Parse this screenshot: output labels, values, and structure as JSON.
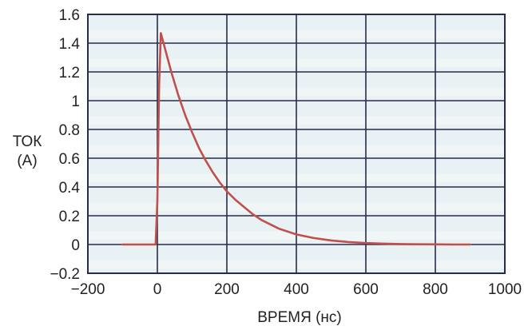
{
  "chart_data": {
    "type": "line",
    "title": "",
    "xlabel": "ВРЕМЯ (нс)",
    "ylabel_lines": [
      "ТОК",
      "(А)"
    ],
    "xlim": [
      -200,
      1000
    ],
    "ylim": [
      -0.2,
      1.6
    ],
    "x_ticks": [
      -200,
      0,
      200,
      400,
      600,
      800,
      1000
    ],
    "x_tick_labels": [
      "−200",
      "0",
      "200",
      "400",
      "600",
      "800",
      "1000"
    ],
    "y_ticks": [
      -0.2,
      0,
      0.2,
      0.4,
      0.6,
      0.8,
      1,
      1.2,
      1.4,
      1.6
    ],
    "y_tick_labels": [
      "−0.2",
      "0",
      "0.2",
      "0.4",
      "0.6",
      "0.8",
      "1",
      "1.2",
      "1.4",
      "1.6"
    ],
    "grid": true,
    "series": [
      {
        "color": "#c0504d",
        "x": [
          -100,
          -5,
          0,
          5,
          10,
          20,
          40,
          60,
          80,
          100,
          120,
          140,
          160,
          180,
          200,
          225,
          250,
          275,
          300,
          350,
          400,
          450,
          500,
          550,
          600,
          650,
          700,
          750,
          800,
          850,
          900
        ],
        "y": [
          0,
          0,
          0.3,
          1.1,
          1.47,
          1.38,
          1.2,
          1.04,
          0.9,
          0.78,
          0.67,
          0.58,
          0.5,
          0.43,
          0.37,
          0.31,
          0.26,
          0.21,
          0.17,
          0.11,
          0.07,
          0.045,
          0.028,
          0.017,
          0.01,
          0.006,
          0.003,
          0.002,
          0.001,
          0.0,
          0.0
        ]
      }
    ],
    "colors": {
      "plot_background": "#e8f2f4",
      "band_background": "#f4f6f6",
      "grid": "#2a2a4a",
      "line": "#c0504d"
    }
  }
}
